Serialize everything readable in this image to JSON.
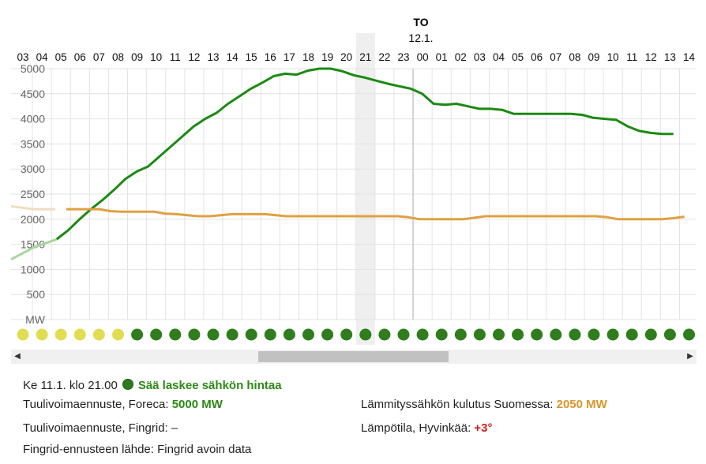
{
  "chart_data": {
    "type": "line",
    "day_label": "TO",
    "date_label": "12.1.",
    "x_ticks": [
      "03",
      "04",
      "05",
      "06",
      "07",
      "08",
      "09",
      "10",
      "11",
      "12",
      "13",
      "14",
      "15",
      "16",
      "17",
      "18",
      "19",
      "20",
      "21",
      "22",
      "23",
      "00",
      "01",
      "02",
      "03",
      "04",
      "05",
      "06",
      "07",
      "08",
      "09",
      "10",
      "11",
      "12",
      "13",
      "14"
    ],
    "y_ticks": [
      5000,
      4500,
      4000,
      3500,
      3000,
      2500,
      2000,
      1500,
      1000,
      500
    ],
    "y_unit_label": "MW",
    "ylim": [
      0,
      5000
    ],
    "highlight_index": 18,
    "day_divider_after_index": 20.5,
    "series": [
      {
        "color": "#1a8a12",
        "history_color": "#a9d6a0",
        "history_end_index": 1.8,
        "values": [
          1200,
          1320,
          1440,
          1520,
          1600,
          1780,
          2000,
          2200,
          2380,
          2580,
          2800,
          2950,
          3050,
          3250,
          3450,
          3650,
          3850,
          4000,
          4120,
          4300,
          4450,
          4600,
          4720,
          4850,
          4900,
          4880,
          4960,
          5000,
          5000,
          4950,
          4870,
          4820,
          4760,
          4700,
          4650,
          4600,
          4500,
          4300,
          4280,
          4300,
          4250,
          4200,
          4200,
          4180,
          4100,
          4100,
          4100,
          4100,
          4100,
          4100,
          4080,
          4020,
          4000,
          3980,
          3850,
          3760,
          3720,
          3700,
          3700
        ],
        "step": 0.6
      },
      {
        "color": "#e0a040",
        "history_color": "#f0dcc0",
        "history_end_index": 1.8,
        "values": [
          2260,
          2230,
          2200,
          2200,
          2200,
          2200,
          2200,
          2200,
          2200,
          2160,
          2150,
          2150,
          2150,
          2150,
          2110,
          2100,
          2080,
          2060,
          2060,
          2080,
          2100,
          2100,
          2100,
          2100,
          2080,
          2060,
          2060,
          2060,
          2060,
          2060,
          2060,
          2060,
          2060,
          2060,
          2060,
          2060,
          2040,
          2000,
          2000,
          2000,
          2000,
          2000,
          2030,
          2060,
          2060,
          2060,
          2060,
          2060,
          2060,
          2060,
          2060,
          2060,
          2060,
          2060,
          2040,
          2000,
          2000,
          2000,
          2000,
          2000,
          2020,
          2050
        ],
        "step": 0.58
      }
    ],
    "hour_markers": [
      "#e1dd52",
      "#e1dd52",
      "#e1dd52",
      "#e1dd52",
      "#e1dd52",
      "#e1dd52",
      "#2f7d1d",
      "#2f7d1d",
      "#2f7d1d",
      "#2f7d1d",
      "#2f7d1d",
      "#2f7d1d",
      "#2f7d1d",
      "#2f7d1d",
      "#2f7d1d",
      "#2f7d1d",
      "#2f7d1d",
      "#2f7d1d",
      "#2f7d1d",
      "#2f7d1d",
      "#2f7d1d",
      "#2f7d1d",
      "#2f7d1d",
      "#2f7d1d",
      "#2f7d1d",
      "#2f7d1d",
      "#2f7d1d",
      "#2f7d1d",
      "#2f7d1d",
      "#2f7d1d",
      "#2f7d1d",
      "#2f7d1d",
      "#2f7d1d",
      "#2f7d1d",
      "#2f7d1d",
      "#2f7d1d"
    ]
  },
  "info": {
    "time_label": "Ke 11.1. klo 21.00",
    "status_text": "Sää laskee sähkön hintaa",
    "foreca_label": "Tuulivoimaennuste, Foreca:",
    "foreca_value": "5000 MW",
    "fingrid_label": "Tuulivoimaennuste, Fingrid:",
    "fingrid_value": "–",
    "source_label": "Fingrid-ennusteen lähde:",
    "source_value": "Fingrid avoin data",
    "heating_label": "Lämmityssähkön kulutus Suomessa:",
    "heating_value": "2050 MW",
    "temp_label": "Lämpötila, Hyvinkää:",
    "temp_value": "+3°"
  },
  "scrollbar": {
    "left_arrow": "◀",
    "right_arrow": "▶"
  }
}
